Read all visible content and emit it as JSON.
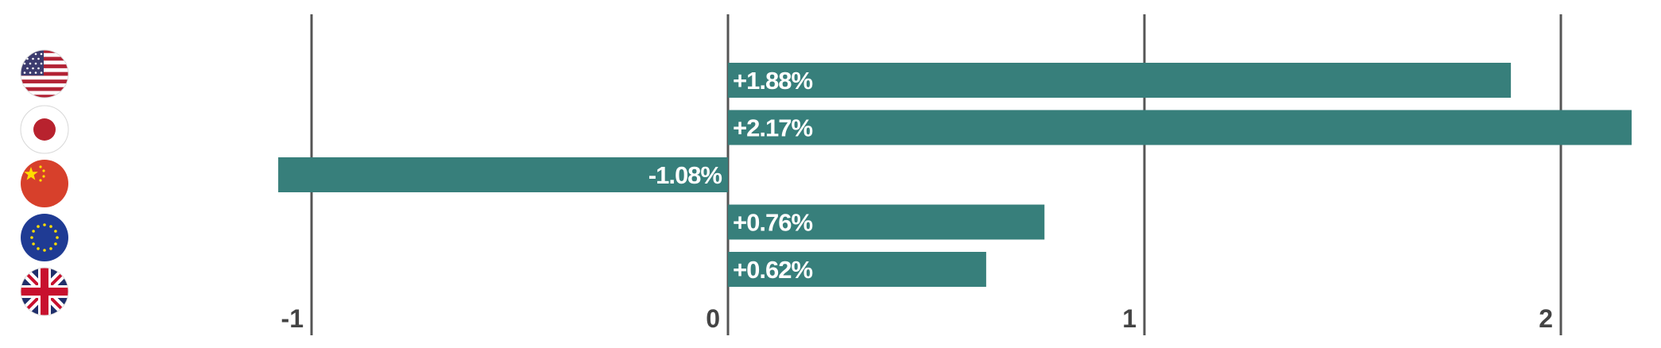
{
  "chart_data": {
    "type": "bar",
    "orientation": "horizontal",
    "categories": [
      "US",
      "Japan",
      "China",
      "Eurozone",
      "UK"
    ],
    "category_icons": [
      "us-flag-icon",
      "japan-flag-icon",
      "china-flag-icon",
      "eu-flag-icon",
      "uk-flag-icon"
    ],
    "values": [
      1.88,
      2.17,
      -1.08,
      0.76,
      0.62
    ],
    "data_labels": [
      "+1.88%",
      "+2.17%",
      "-1.08%",
      "+0.76%",
      "+0.62%"
    ],
    "xticks": [
      -1,
      0,
      1,
      2
    ],
    "xtick_labels": [
      "-1",
      "0",
      "1",
      "2"
    ],
    "xlim": [
      -1.08,
      2.17
    ],
    "grid": true,
    "title": "",
    "xlabel": "",
    "ylabel": "",
    "bar_color": "#377f7b",
    "gridline_color": "#555555"
  }
}
